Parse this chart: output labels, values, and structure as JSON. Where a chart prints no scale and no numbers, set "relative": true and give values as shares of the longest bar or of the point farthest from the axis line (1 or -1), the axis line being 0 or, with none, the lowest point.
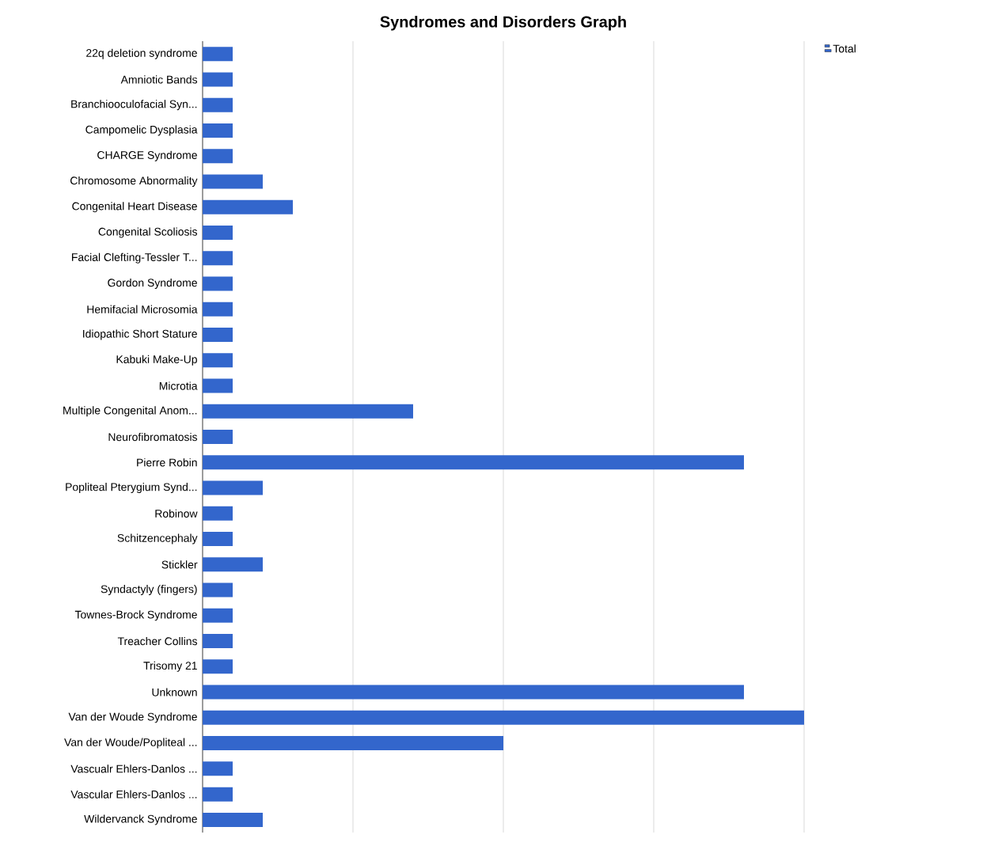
{
  "chart_data": {
    "type": "bar",
    "orientation": "horizontal",
    "relative": true,
    "title": "Syndromes and Disorders Graph",
    "categories": [
      "22q deletion syndrome",
      "Amniotic Bands",
      "Branchiooculofacial Syn...",
      "Campomelic Dysplasia",
      "CHARGE Syndrome",
      "Chromosome Abnormality",
      "Congenital Heart Disease",
      "Congenital Scoliosis",
      "Facial Clefting-Tessler T...",
      "Gordon Syndrome",
      "Hemifacial Microsomia",
      "Idiopathic Short Stature",
      "Kabuki Make-Up",
      "Microtia",
      "Multiple Congenital Anom...",
      "Neurofibromatosis",
      "Pierre Robin",
      "Popliteal Pterygium Synd...",
      "Robinow",
      "Schitzencephaly",
      "Stickler",
      "Syndactyly (fingers)",
      "Townes-Brock Syndrome",
      "Treacher Collins",
      "Trisomy 21",
      "Unknown",
      "Van der Woude Syndrome",
      "Van der Woude/Popliteal ...",
      "Vascualr Ehlers-Danlos ...",
      "Vascular Ehlers-Danlos ...",
      "Wildervanck Syndrome"
    ],
    "series": [
      {
        "name": "Total",
        "color": "#3366cc",
        "values": [
          0.05,
          0.05,
          0.05,
          0.05,
          0.05,
          0.1,
          0.15,
          0.05,
          0.05,
          0.05,
          0.05,
          0.05,
          0.05,
          0.05,
          0.35,
          0.05,
          0.9,
          0.1,
          0.05,
          0.05,
          0.1,
          0.05,
          0.05,
          0.05,
          0.05,
          0.9,
          1,
          0.5,
          0.05,
          0.05,
          0.1
        ]
      }
    ],
    "grid": "x",
    "legend": "top right",
    "tick_labels": "y"
  }
}
